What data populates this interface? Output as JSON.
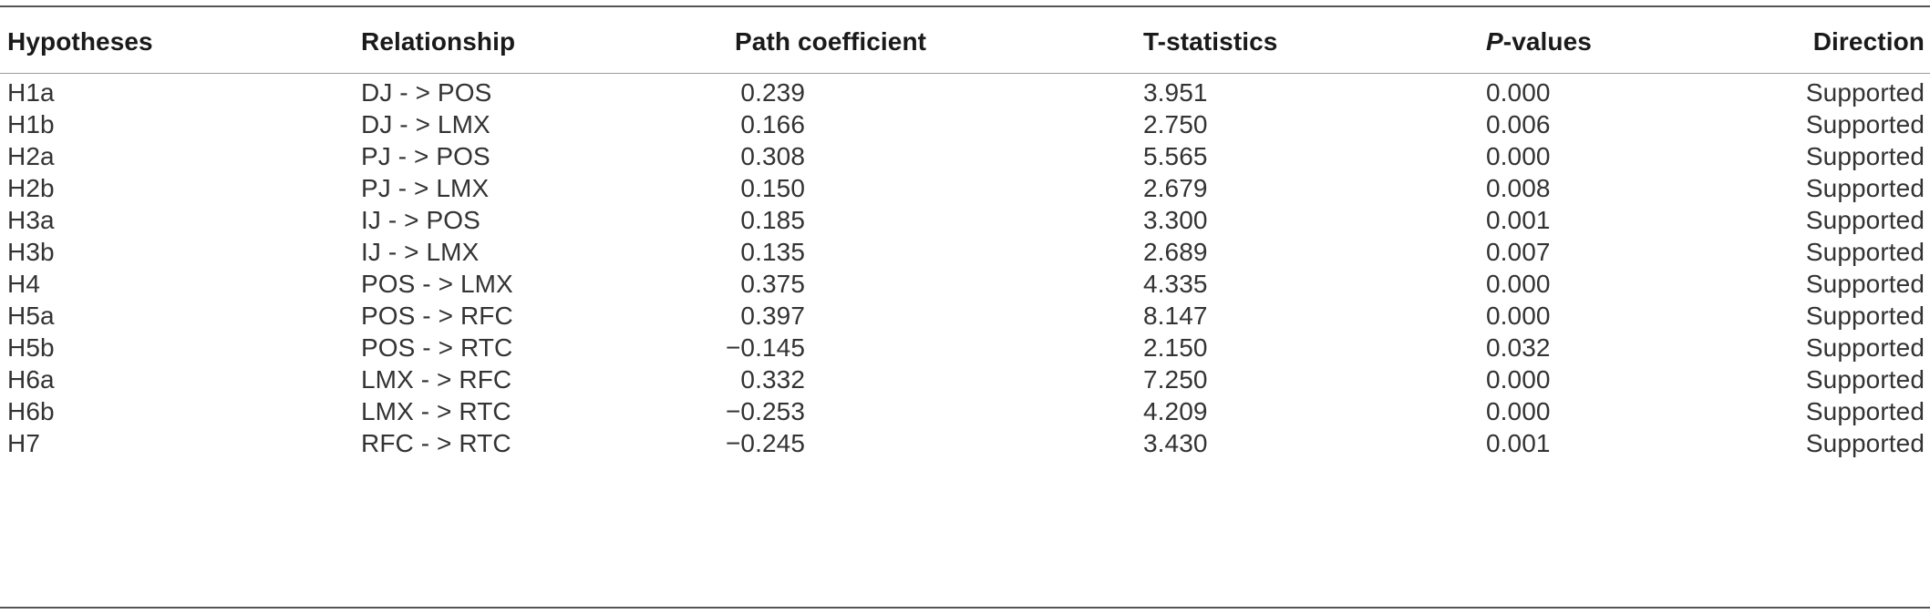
{
  "table": {
    "headers": {
      "hypotheses": "Hypotheses",
      "relationship": "Relationship",
      "path_coefficient": "Path coefficient",
      "t_statistics": "T-statistics",
      "p_values_italic": "P",
      "p_values_rest": "-values",
      "direction": "Direction"
    },
    "rows": [
      {
        "hypothesis": "H1a",
        "relationship": "DJ - >  POS",
        "path": "0.239",
        "t": "3.951",
        "p": "0.000",
        "direction": "Supported"
      },
      {
        "hypothesis": "H1b",
        "relationship": "DJ - >  LMX",
        "path": "0.166",
        "t": "2.750",
        "p": "0.006",
        "direction": "Supported"
      },
      {
        "hypothesis": "H2a",
        "relationship": "PJ - >  POS",
        "path": "0.308",
        "t": "5.565",
        "p": "0.000",
        "direction": "Supported"
      },
      {
        "hypothesis": "H2b",
        "relationship": "PJ - >  LMX",
        "path": "0.150",
        "t": "2.679",
        "p": "0.008",
        "direction": "Supported"
      },
      {
        "hypothesis": "H3a",
        "relationship": "IJ - >  POS",
        "path": "0.185",
        "t": "3.300",
        "p": "0.001",
        "direction": "Supported"
      },
      {
        "hypothesis": "H3b",
        "relationship": "IJ - >  LMX",
        "path": "0.135",
        "t": "2.689",
        "p": "0.007",
        "direction": "Supported"
      },
      {
        "hypothesis": "H4",
        "relationship": "POS - >  LMX",
        "path": "0.375",
        "t": "4.335",
        "p": "0.000",
        "direction": "Supported"
      },
      {
        "hypothesis": "H5a",
        "relationship": "POS - >  RFC",
        "path": "0.397",
        "t": "8.147",
        "p": "0.000",
        "direction": "Supported"
      },
      {
        "hypothesis": "H5b",
        "relationship": "POS - >  RTC",
        "path": "−0.145",
        "t": "2.150",
        "p": "0.032",
        "direction": "Supported"
      },
      {
        "hypothesis": "H6a",
        "relationship": "LMX - >  RFC",
        "path": "0.332",
        "t": "7.250",
        "p": "0.000",
        "direction": "Supported"
      },
      {
        "hypothesis": "H6b",
        "relationship": "LMX - >  RTC",
        "path": "−0.253",
        "t": "4.209",
        "p": "0.000",
        "direction": "Supported"
      },
      {
        "hypothesis": "H7",
        "relationship": "RFC - >  RTC",
        "path": "−0.245",
        "t": "3.430",
        "p": "0.001",
        "direction": "Supported"
      }
    ]
  }
}
